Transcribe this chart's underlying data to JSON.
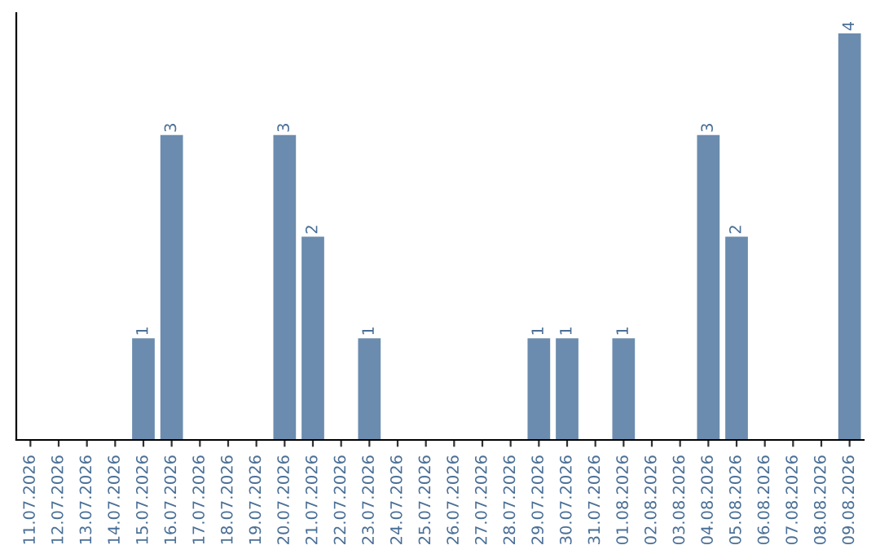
{
  "chart_data": {
    "type": "bar",
    "categories": [
      "11.07.2026",
      "12.07.2026",
      "13.07.2026",
      "14.07.2026",
      "15.07.2026",
      "16.07.2026",
      "17.07.2026",
      "18.07.2026",
      "19.07.2026",
      "20.07.2026",
      "21.07.2026",
      "22.07.2026",
      "23.07.2026",
      "24.07.2026",
      "25.07.2026",
      "26.07.2026",
      "27.07.2026",
      "28.07.2026",
      "29.07.2026",
      "30.07.2026",
      "31.07.2026",
      "01.08.2026",
      "02.08.2026",
      "03.08.2026",
      "04.08.2026",
      "05.08.2026",
      "06.08.2026",
      "07.08.2026",
      "08.08.2026",
      "09.08.2026"
    ],
    "values": [
      0,
      0,
      0,
      0,
      1,
      3,
      0,
      0,
      0,
      3,
      2,
      0,
      1,
      0,
      0,
      0,
      0,
      0,
      1,
      1,
      0,
      1,
      0,
      0,
      3,
      2,
      0,
      0,
      0,
      4
    ],
    "value_labels": [
      null,
      null,
      null,
      null,
      "1",
      "3",
      null,
      null,
      null,
      "3",
      "2",
      null,
      "1",
      null,
      null,
      null,
      null,
      null,
      "1",
      "1",
      null,
      "1",
      null,
      null,
      "3",
      "2",
      null,
      null,
      null,
      "4"
    ],
    "color": "#6b8cae",
    "ylim": [
      0,
      4.2
    ],
    "tick_labels": "x",
    "grid": false,
    "legend": false
  }
}
